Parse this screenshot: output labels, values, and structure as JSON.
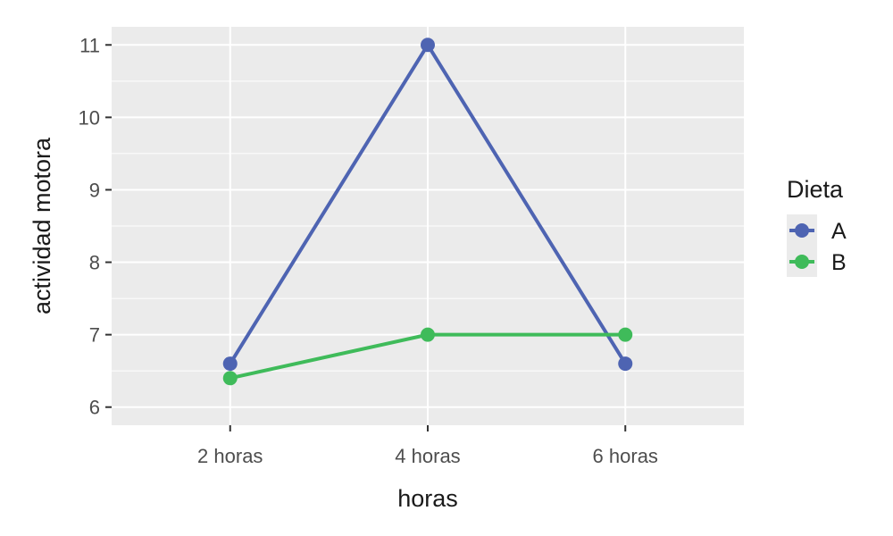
{
  "chart_data": {
    "type": "line",
    "categories": [
      "2 horas",
      "4 horas",
      "6 horas"
    ],
    "xlabel": "horas",
    "ylabel": "actividad motora",
    "ylim": [
      5.75,
      11.25
    ],
    "yticks": [
      6,
      7,
      8,
      9,
      10,
      11
    ],
    "grid": true,
    "legend": {
      "title": "Dieta",
      "position": "right"
    },
    "series": [
      {
        "name": "A",
        "color": "#4e64b2",
        "values": [
          6.6,
          11,
          6.6
        ]
      },
      {
        "name": "B",
        "color": "#3fbb5a",
        "values": [
          6.4,
          7,
          7
        ]
      }
    ]
  }
}
